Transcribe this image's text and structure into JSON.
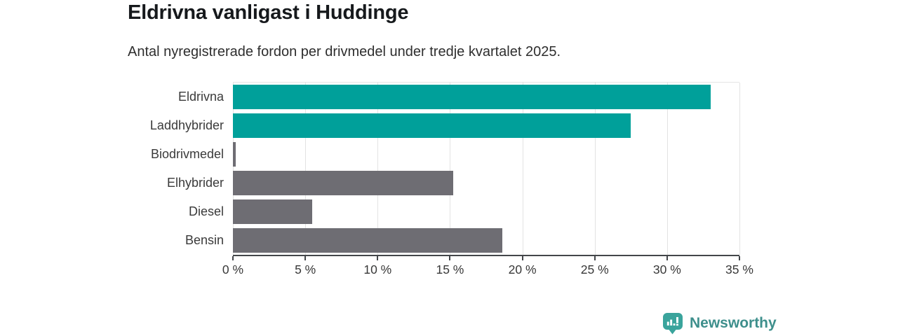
{
  "header": {
    "title": "Eldrivna vanligast i Huddinge",
    "subtitle": "Antal nyregistrerade fordon per drivmedel under tredje kvartalet 2025."
  },
  "chart_data": {
    "type": "bar",
    "orientation": "horizontal",
    "title": "Eldrivna vanligast i Huddinge",
    "subtitle": "Antal nyregistrerade fordon per drivmedel under tredje kvartalet 2025.",
    "categories": [
      "Eldrivna",
      "Laddhybrider",
      "Biodrivmedel",
      "Elhybrider",
      "Diesel",
      "Bensin"
    ],
    "values": [
      33.0,
      27.5,
      0.2,
      15.2,
      5.5,
      18.6
    ],
    "unit": "%",
    "xlim": [
      0,
      35
    ],
    "tick_step": 5,
    "tick_labels": [
      "0 %",
      "5 %",
      "10 %",
      "15 %",
      "20 %",
      "25 %",
      "30 %",
      "35 %"
    ],
    "grid": true,
    "legend": false,
    "xlabel": "",
    "ylabel": "",
    "colors": {
      "highlight": "#00a09a",
      "default": "#6e6d73",
      "gridline": "#e3e3e3",
      "axis": "#43464a"
    },
    "bar_palette": [
      "#00a09a",
      "#00a09a",
      "#6e6d73",
      "#6e6d73",
      "#6e6d73",
      "#6e6d73"
    ]
  },
  "footer": {
    "brand": "Newsworthy",
    "brand_color": "#3e8f8c",
    "icon": "newsworthy-barchart-pin-icon",
    "icon_color": "#3aa49c"
  }
}
